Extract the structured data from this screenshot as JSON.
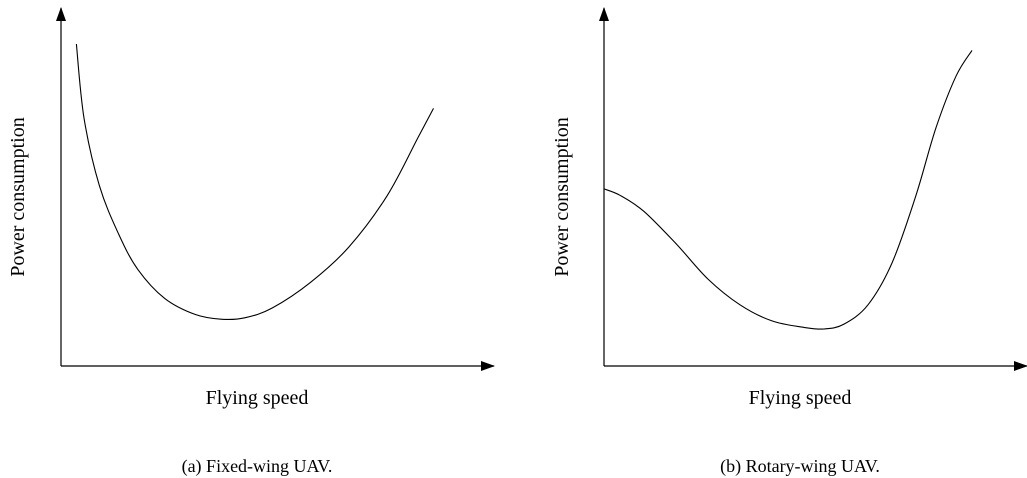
{
  "chart_data": [
    {
      "type": "line",
      "caption": "(a) Fixed-wing UAV.",
      "xlabel": "Flying speed",
      "ylabel": "Power consumption",
      "grid": false,
      "axis_ticks": false,
      "x": [
        0.04,
        0.06,
        0.1,
        0.15,
        0.2,
        0.27,
        0.35,
        0.42,
        0.48,
        0.55,
        0.65,
        0.75,
        0.85,
        0.93,
        0.97
      ],
      "y": [
        1.0,
        0.77,
        0.56,
        0.41,
        0.3,
        0.21,
        0.16,
        0.145,
        0.15,
        0.18,
        0.26,
        0.37,
        0.53,
        0.71,
        0.8
      ]
    },
    {
      "type": "line",
      "caption": "(b) Rotary-wing UAV.",
      "xlabel": "Flying speed",
      "ylabel": "Power consumption",
      "grid": false,
      "axis_ticks": false,
      "x": [
        0.0,
        0.04,
        0.1,
        0.18,
        0.26,
        0.34,
        0.42,
        0.5,
        0.55,
        0.6,
        0.66,
        0.72,
        0.78,
        0.83,
        0.88,
        0.92
      ],
      "y": [
        0.55,
        0.53,
        0.48,
        0.38,
        0.27,
        0.19,
        0.14,
        0.12,
        0.115,
        0.13,
        0.19,
        0.32,
        0.53,
        0.74,
        0.9,
        0.98
      ]
    }
  ]
}
